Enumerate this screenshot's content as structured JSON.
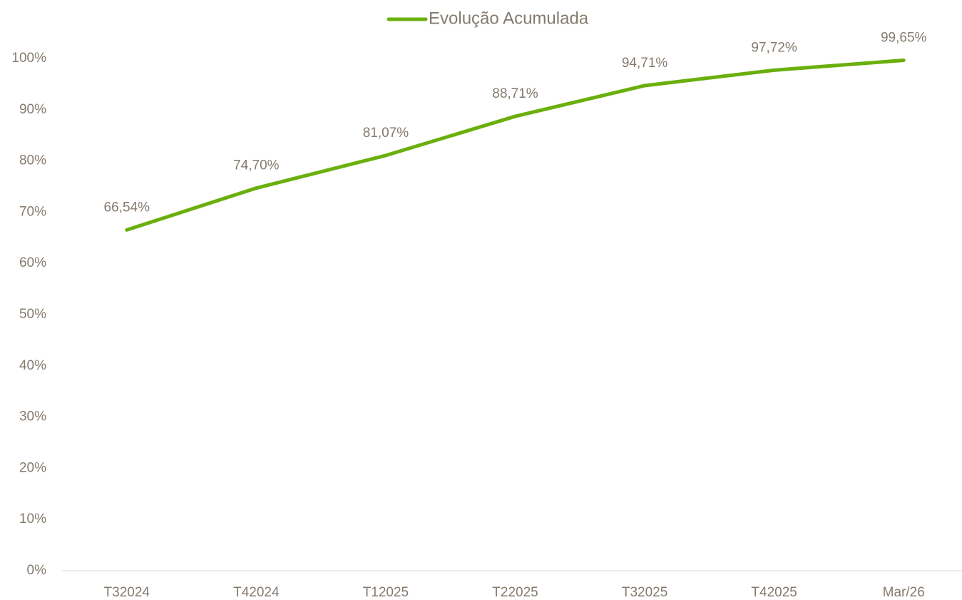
{
  "chart_data": {
    "type": "line",
    "categories": [
      "T32024",
      "T42024",
      "T12025",
      "T22025",
      "T32025",
      "T42025",
      "Mar/26"
    ],
    "series": [
      {
        "name": "Evolução Acumulada",
        "color": "#6aaf0c",
        "values": [
          66.54,
          74.7,
          81.07,
          88.71,
          94.71,
          97.72,
          99.65
        ],
        "value_labels": [
          "66,54%",
          "74,70%",
          "81,07%",
          "88,71%",
          "94,71%",
          "97,72%",
          "99,65%"
        ]
      }
    ],
    "ylim": [
      0,
      100
    ],
    "yticks": [
      {
        "value": 0,
        "label": "0%"
      },
      {
        "value": 10,
        "label": "10%"
      },
      {
        "value": 20,
        "label": "20%"
      },
      {
        "value": 30,
        "label": "30%"
      },
      {
        "value": 40,
        "label": "40%"
      },
      {
        "value": 50,
        "label": "50%"
      },
      {
        "value": 60,
        "label": "60%"
      },
      {
        "value": 70,
        "label": "70%"
      },
      {
        "value": 80,
        "label": "80%"
      },
      {
        "value": 90,
        "label": "90%"
      },
      {
        "value": 100,
        "label": "100%"
      }
    ],
    "grid": false,
    "legend": "top"
  }
}
